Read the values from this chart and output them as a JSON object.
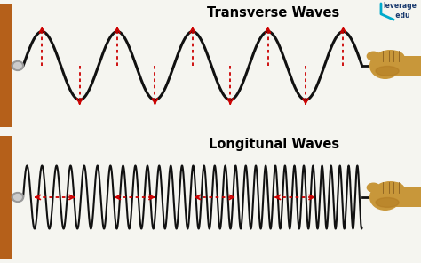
{
  "bg_color": "#f5f5f0",
  "wall_color": "#b5601a",
  "wave_color": "#111111",
  "arrow_color": "#cc0000",
  "hand_color": "#c8973a",
  "hand_dark": "#8a6020",
  "bolt_color": "#999999",
  "title_transverse": "Transverse Waves",
  "title_longitudinal": "Longitunal Waves",
  "title_fontsize": 10.5,
  "title_fontweight": "bold",
  "trans_amplitude": 0.78,
  "trans_cycles": 4.5,
  "long_base_freq": 22,
  "long_amplitude": 0.72
}
